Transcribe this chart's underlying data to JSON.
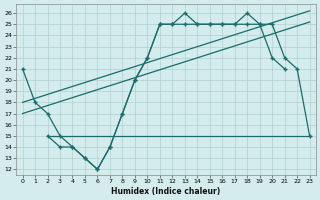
{
  "xlabel": "Humidex (Indice chaleur)",
  "background_color": "#d4ecec",
  "line_color": "#1a6b6b",
  "xlim": [
    -0.5,
    23.5
  ],
  "ylim": [
    11.5,
    26.8
  ],
  "yticks": [
    12,
    13,
    14,
    15,
    16,
    17,
    18,
    19,
    20,
    21,
    22,
    23,
    24,
    25,
    26
  ],
  "xticks": [
    0,
    1,
    2,
    3,
    4,
    5,
    6,
    7,
    8,
    9,
    10,
    11,
    12,
    13,
    14,
    15,
    16,
    17,
    18,
    19,
    20,
    21,
    22,
    23
  ],
  "curve1_x": [
    0,
    1,
    2,
    3,
    4,
    5,
    6,
    7,
    8,
    9,
    10,
    11,
    12,
    13,
    14,
    15,
    16,
    17,
    18,
    19,
    20,
    21
  ],
  "curve1_y": [
    21,
    18,
    17,
    15,
    14,
    13,
    12,
    14,
    17,
    20,
    22,
    25,
    25,
    26,
    25,
    25,
    25,
    25,
    26,
    25,
    22,
    21
  ],
  "curve2_x": [
    2,
    3,
    4,
    5,
    6,
    7,
    8,
    9,
    10,
    11,
    12,
    13,
    14,
    15,
    16,
    17,
    18,
    19,
    20,
    21,
    22,
    23
  ],
  "curve2_y": [
    15,
    14,
    14,
    13,
    12,
    14,
    17,
    20,
    22,
    25,
    25,
    25,
    25,
    25,
    25,
    25,
    25,
    25,
    25,
    22,
    21,
    15
  ],
  "flat_x": [
    2,
    3,
    4,
    5,
    6,
    7,
    8,
    9,
    10,
    11,
    12,
    13,
    14,
    15,
    16,
    17,
    18,
    19,
    20,
    21,
    22,
    23
  ],
  "flat_y": [
    15,
    15,
    15,
    15,
    15,
    15,
    15,
    15,
    15,
    15,
    15,
    15,
    15,
    15,
    15,
    15,
    15,
    15,
    15,
    15,
    15,
    15
  ],
  "trend1_x": [
    0,
    23
  ],
  "trend1_y": [
    18.0,
    26.2
  ],
  "trend2_x": [
    0,
    23
  ],
  "trend2_y": [
    17.0,
    25.2
  ]
}
